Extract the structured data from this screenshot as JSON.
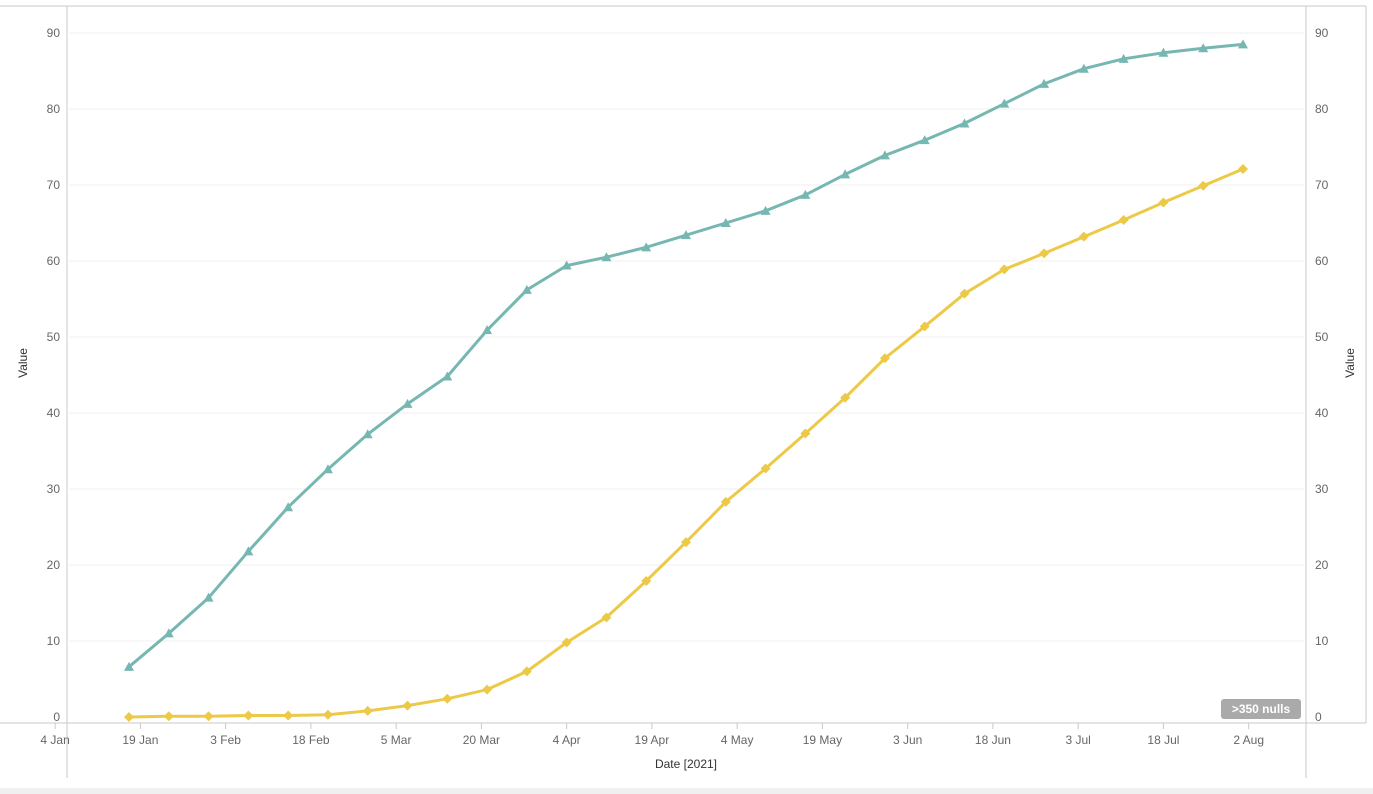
{
  "chart_data": {
    "type": "line",
    "xlabel": "Date [2021]",
    "ylabel_left": "Value",
    "ylabel_right": "Value",
    "ylim": [
      0,
      92
    ],
    "yticks": [
      0,
      10,
      20,
      30,
      40,
      50,
      60,
      70,
      80,
      90
    ],
    "xlim": [
      "2021-01-04",
      "2021-08-09"
    ],
    "xticks": [
      {
        "date": "2021-01-04",
        "label": "4 Jan"
      },
      {
        "date": "2021-01-19",
        "label": "19 Jan"
      },
      {
        "date": "2021-02-03",
        "label": "3 Feb"
      },
      {
        "date": "2021-02-18",
        "label": "18 Feb"
      },
      {
        "date": "2021-03-05",
        "label": "5 Mar"
      },
      {
        "date": "2021-03-20",
        "label": "20 Mar"
      },
      {
        "date": "2021-04-04",
        "label": "4 Apr"
      },
      {
        "date": "2021-04-19",
        "label": "19 Apr"
      },
      {
        "date": "2021-05-04",
        "label": "4 May"
      },
      {
        "date": "2021-05-19",
        "label": "19 May"
      },
      {
        "date": "2021-06-03",
        "label": "3 Jun"
      },
      {
        "date": "2021-06-18",
        "label": "18 Jun"
      },
      {
        "date": "2021-07-03",
        "label": "3 Jul"
      },
      {
        "date": "2021-07-18",
        "label": "18 Jul"
      },
      {
        "date": "2021-08-02",
        "label": "2 Aug"
      }
    ],
    "grid": true,
    "null_indicator": ">350 nulls",
    "x": [
      "2021-01-17",
      "2021-01-24",
      "2021-01-31",
      "2021-02-07",
      "2021-02-14",
      "2021-02-21",
      "2021-02-28",
      "2021-03-07",
      "2021-03-14",
      "2021-03-21",
      "2021-03-28",
      "2021-04-04",
      "2021-04-11",
      "2021-04-18",
      "2021-04-25",
      "2021-05-02",
      "2021-05-09",
      "2021-05-16",
      "2021-05-23",
      "2021-05-30",
      "2021-06-06",
      "2021-06-13",
      "2021-06-20",
      "2021-06-27",
      "2021-07-04",
      "2021-07-11",
      "2021-07-18",
      "2021-07-25",
      "2021-08-01"
    ],
    "series": [
      {
        "color": "#76b7b2",
        "marker": "triangle",
        "values": [
          6.6,
          11.0,
          15.7,
          21.8,
          27.6,
          32.6,
          37.2,
          41.2,
          44.8,
          50.9,
          56.2,
          59.4,
          60.5,
          61.8,
          63.4,
          65.0,
          66.6,
          68.7,
          71.4,
          73.9,
          75.9,
          78.1,
          80.7,
          83.3,
          85.3,
          86.6,
          87.4,
          88.0,
          88.5
        ]
      },
      {
        "color": "#edc948",
        "marker": "diamond",
        "values": [
          0.0,
          0.1,
          0.1,
          0.2,
          0.2,
          0.3,
          0.8,
          1.5,
          2.4,
          3.6,
          6.0,
          9.8,
          13.1,
          17.9,
          23.0,
          28.3,
          32.7,
          37.3,
          42.0,
          47.2,
          51.4,
          55.7,
          58.9,
          61.0,
          63.2,
          65.4,
          67.7,
          69.9,
          72.1
        ]
      }
    ]
  }
}
